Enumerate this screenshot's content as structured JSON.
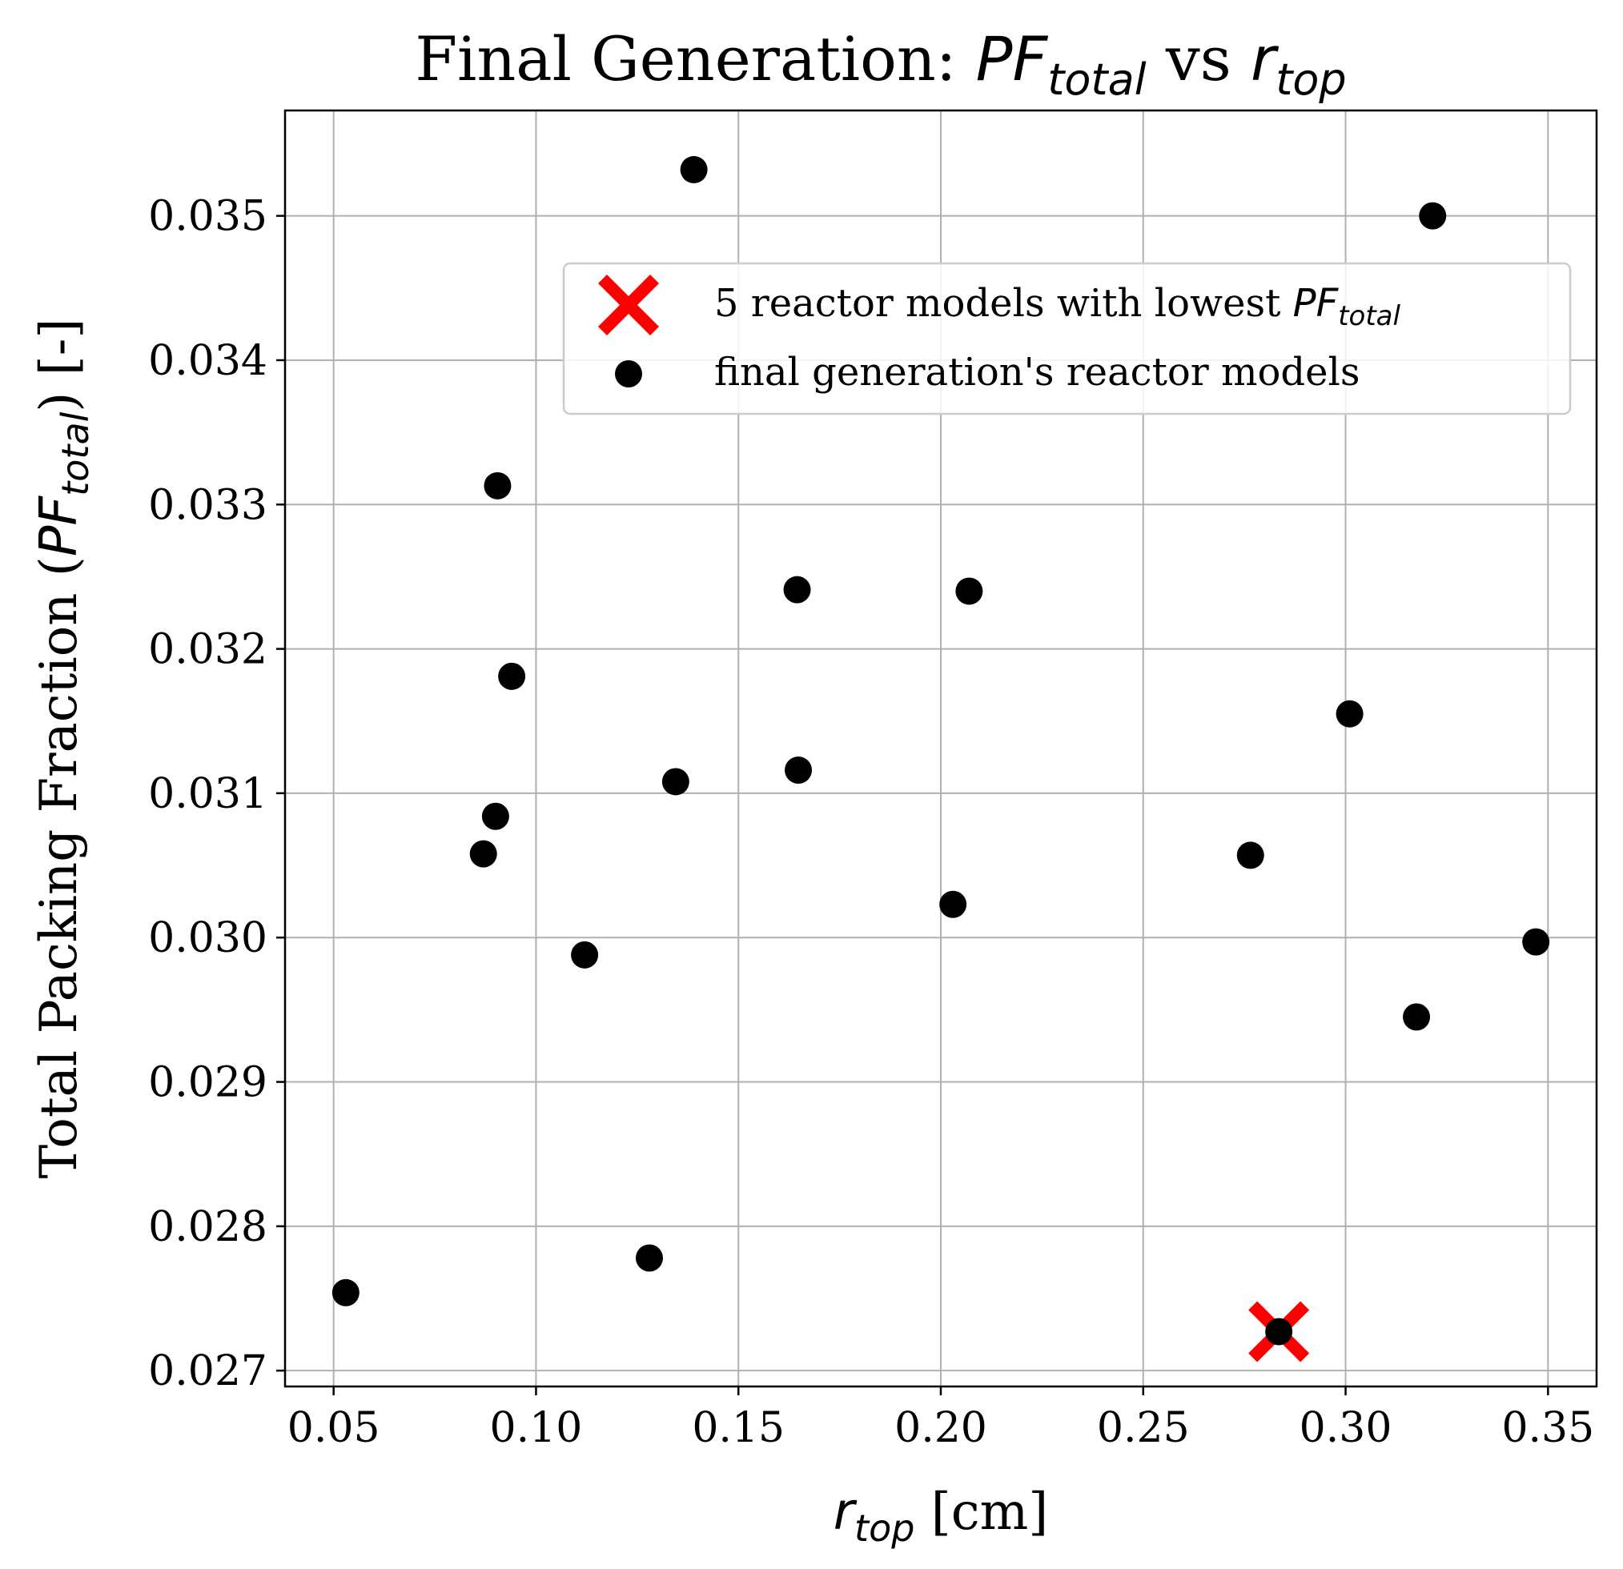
{
  "chart_data": {
    "type": "scatter",
    "title": {
      "prefix": "Final Generation: ",
      "var1_main": "PF",
      "var1_sub": "total",
      "joiner": " vs ",
      "var2_main": "r",
      "var2_sub": "top"
    },
    "xlabel": {
      "main": "r",
      "sub": "top",
      "unit": " [cm]"
    },
    "ylabel": {
      "prefix": "Total Packing Fraction (",
      "main": "PF",
      "sub": "total",
      "suffix": ") [-]"
    },
    "xlim": [
      0.038,
      0.362
    ],
    "ylim": [
      0.02689,
      0.03573
    ],
    "xticks": [
      0.05,
      0.1,
      0.15,
      0.2,
      0.25,
      0.3,
      0.35
    ],
    "xtick_labels": [
      "0.05",
      "0.10",
      "0.15",
      "0.20",
      "0.25",
      "0.30",
      "0.35"
    ],
    "yticks": [
      0.027,
      0.028,
      0.029,
      0.03,
      0.031,
      0.032,
      0.033,
      0.034,
      0.035
    ],
    "ytick_labels": [
      "0.027",
      "0.028",
      "0.029",
      "0.030",
      "0.031",
      "0.032",
      "0.033",
      "0.034",
      "0.035"
    ],
    "grid": true,
    "legend_position": "upper right",
    "series": [
      {
        "name": "5 reactor models with lowest PF_total",
        "label_text": "5 reactor models with lowest ",
        "label_main": "PF",
        "label_sub": "total",
        "marker": "X",
        "color": "#ff0000",
        "points": [
          [
            0.2835,
            0.02727
          ]
        ]
      },
      {
        "name": "final generation's reactor models",
        "label_text": "final generation's reactor models",
        "marker": "circle",
        "color": "#000000",
        "points": [
          [
            0.053,
            0.02754
          ],
          [
            0.087,
            0.03058
          ],
          [
            0.09,
            0.03084
          ],
          [
            0.0905,
            0.03313
          ],
          [
            0.094,
            0.03181
          ],
          [
            0.112,
            0.02988
          ],
          [
            0.128,
            0.02778
          ],
          [
            0.1345,
            0.03108
          ],
          [
            0.139,
            0.03532
          ],
          [
            0.1645,
            0.03241
          ],
          [
            0.1648,
            0.03116
          ],
          [
            0.203,
            0.03023
          ],
          [
            0.207,
            0.0324
          ],
          [
            0.2765,
            0.03057
          ],
          [
            0.2835,
            0.02727
          ],
          [
            0.301,
            0.03155
          ],
          [
            0.3175,
            0.02945
          ],
          [
            0.3215,
            0.035
          ],
          [
            0.347,
            0.02997
          ]
        ]
      }
    ]
  }
}
